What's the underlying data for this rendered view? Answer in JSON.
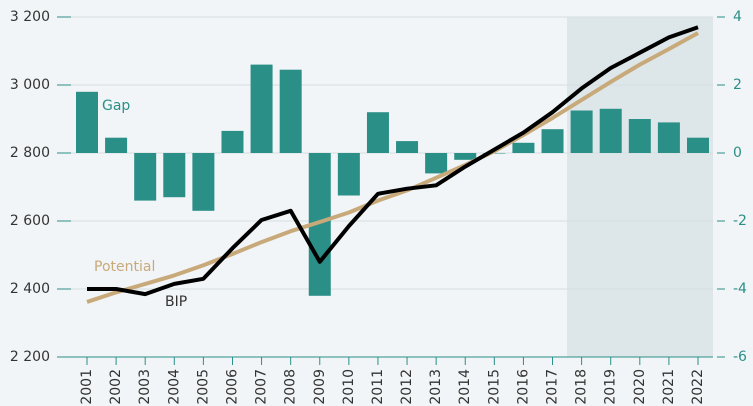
{
  "chart_data": {
    "type": "bar-line",
    "categories": [
      "2001",
      "2002",
      "2003",
      "2004",
      "2005",
      "2006",
      "2007",
      "2008",
      "2009",
      "2010",
      "2011",
      "2012",
      "2013",
      "2014",
      "2015",
      "2016",
      "2017",
      "2018",
      "2019",
      "2020",
      "2021",
      "2022"
    ],
    "series": [
      {
        "name": "Gap",
        "color": "#2a8f87",
        "kind": "bar",
        "axis": "y2",
        "values": [
          1.8,
          0.45,
          -1.4,
          -1.3,
          -1.7,
          0.65,
          2.6,
          2.45,
          -4.2,
          -1.25,
          1.2,
          0.35,
          -0.6,
          -0.2,
          0,
          0.3,
          0.7,
          1.25,
          1.3,
          1.0,
          0.9,
          0.45
        ]
      },
      {
        "name": "Potential",
        "color": "#c8a97a",
        "kind": "line",
        "values": [
          2362,
          2390,
          2415,
          2440,
          2470,
          2503,
          2538,
          2570,
          2597,
          2625,
          2660,
          2690,
          2727,
          2765,
          2805,
          2853,
          2903,
          2956,
          3009,
          3060,
          3106,
          3153
        ]
      },
      {
        "name": "BIP",
        "color": "#000000",
        "kind": "line",
        "values": [
          2400,
          2400,
          2385,
          2415,
          2430,
          2520,
          2603,
          2630,
          2480,
          2585,
          2680,
          2695,
          2705,
          2760,
          2810,
          2860,
          2920,
          2990,
          3050,
          3095,
          3140,
          3170
        ]
      }
    ],
    "ylim": [
      2200,
      3200
    ],
    "yticks": [
      {
        "value": 2200,
        "label": "2 200"
      },
      {
        "value": 2400,
        "label": "2 400"
      },
      {
        "value": 2600,
        "label": "2 600"
      },
      {
        "value": 2800,
        "label": "2 800"
      },
      {
        "value": 3000,
        "label": "3 000"
      },
      {
        "value": 3200,
        "label": "3 200"
      }
    ],
    "y2lim": [
      -6,
      4
    ],
    "y2ticks": [
      -6,
      -4,
      -2,
      0,
      2,
      4
    ],
    "shaded_range": [
      "2018",
      "2022"
    ],
    "grid": true
  }
}
